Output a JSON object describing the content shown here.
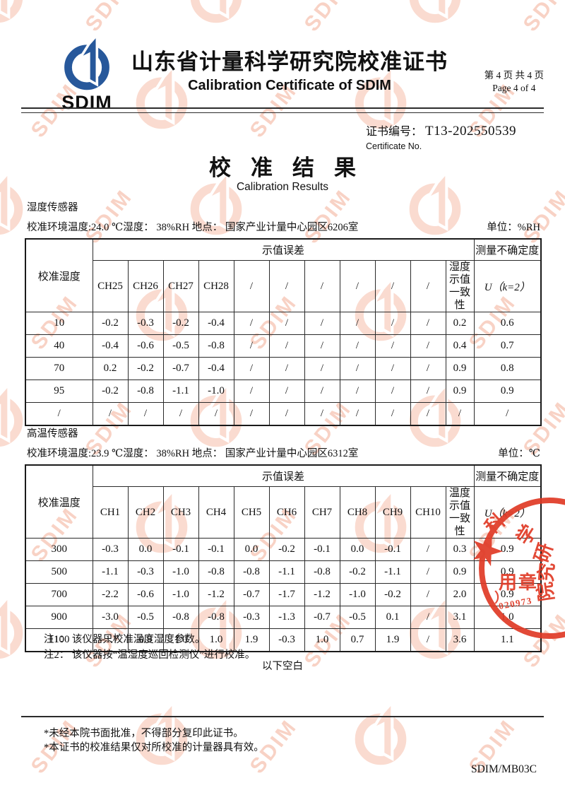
{
  "header": {
    "logo_text": "SDIM",
    "title_cn": "山东省计量科学研究院校准证书",
    "title_en": "Calibration Certificate of SDIM",
    "page_cn": "第 4 页 共 4 页",
    "page_en": "Page 4 of 4"
  },
  "certificate": {
    "label_cn": "证书编号：",
    "number": "T13-202550539",
    "label_en": "Certificate No."
  },
  "results": {
    "title_cn": "校准结果",
    "title_en": "Calibration Results"
  },
  "humidity_section": {
    "name": "湿度传感器",
    "conditions": "校准环境温度:24.0 ℃湿度： 38%RH  地点： 国家产业计量中心园区6206室",
    "unit": "单位：%RH",
    "table": {
      "corner_header": "校准湿度",
      "error_header": "示值误差",
      "uncertainty_header": "测量不确定度",
      "uncertainty_sub": "U（k=2）",
      "channels": [
        "CH25",
        "CH26",
        "CH27",
        "CH28",
        "/",
        "/",
        "/",
        "/",
        "/",
        "/"
      ],
      "consistency_header": "湿度示值一致性",
      "rows": [
        [
          "10",
          "-0.2",
          "-0.3",
          "-0.2",
          "-0.4",
          "/",
          "/",
          "/",
          "/",
          "/",
          "/",
          "0.2",
          "0.6"
        ],
        [
          "40",
          "-0.4",
          "-0.6",
          "-0.5",
          "-0.8",
          "/",
          "/",
          "/",
          "/",
          "/",
          "/",
          "0.4",
          "0.7"
        ],
        [
          "70",
          "0.2",
          "-0.2",
          "-0.7",
          "-0.4",
          "/",
          "/",
          "/",
          "/",
          "/",
          "/",
          "0.9",
          "0.8"
        ],
        [
          "95",
          "-0.2",
          "-0.8",
          "-1.1",
          "-1.0",
          "/",
          "/",
          "/",
          "/",
          "/",
          "/",
          "0.9",
          "0.9"
        ],
        [
          "/",
          "/",
          "/",
          "/",
          "/",
          "/",
          "/",
          "/",
          "/",
          "/",
          "/",
          "/",
          "/"
        ]
      ]
    }
  },
  "temperature_section": {
    "name": "高温传感器",
    "conditions": "校准环境温度:23.9 ℃湿度： 38%RH  地点： 国家产业计量中心园区6312室",
    "unit": "单位：℃",
    "table": {
      "corner_header": "校准温度",
      "error_header": "示值误差",
      "uncertainty_header": "测量不确定度",
      "uncertainty_sub": "U（k=2）",
      "channels": [
        "CH1",
        "CH2",
        "CH3",
        "CH4",
        "CH5",
        "CH6",
        "CH7",
        "CH8",
        "CH9",
        "CH10"
      ],
      "consistency_header": "温度示值一致性",
      "rows": [
        [
          "300",
          "-0.3",
          "0.0",
          "-0.1",
          "-0.1",
          "0.0",
          "-0.2",
          "-0.1",
          "0.0",
          "-0.1",
          "/",
          "0.3",
          "0.9"
        ],
        [
          "500",
          "-1.1",
          "-0.3",
          "-1.0",
          "-0.8",
          "-0.8",
          "-1.1",
          "-0.8",
          "-0.2",
          "-1.1",
          "/",
          "0.9",
          "0.9"
        ],
        [
          "700",
          "-2.2",
          "-0.6",
          "-1.0",
          "-1.2",
          "-0.7",
          "-1.7",
          "-1.2",
          "-1.0",
          "-0.2",
          "/",
          "2.0",
          "0.9"
        ],
        [
          "900",
          "-3.0",
          "-0.5",
          "-0.8",
          "-0.8",
          "-0.3",
          "-1.3",
          "-0.7",
          "-0.5",
          "0.1",
          "/",
          "3.1",
          "1.0"
        ],
        [
          "1100",
          "-1.7",
          "0.9",
          "1.0",
          "1.0",
          "1.9",
          "-0.3",
          "1.0",
          "0.7",
          "1.9",
          "/",
          "3.6",
          "1.1"
        ]
      ]
    }
  },
  "notes": [
    "注1： 该仪器只校准温度湿度参数。",
    "注2： 该仪器按“温湿度巡回检测仪”进行校准。"
  ],
  "blank_marker": "以下空白",
  "footer": {
    "disclaimers": [
      "*未经本院书面批准，不得部分复印此证书。",
      "*本证书的校准结果仅对所校准的计量器具有效。"
    ],
    "doc_code": "SDIM/MB03C"
  },
  "stamp": {
    "arc_chars": [
      "科",
      "学",
      "研",
      "究",
      "院"
    ],
    "text_line1": "用章",
    "bracket": "）",
    "digits": "020973"
  },
  "watermark": {
    "text": "SDIM"
  }
}
